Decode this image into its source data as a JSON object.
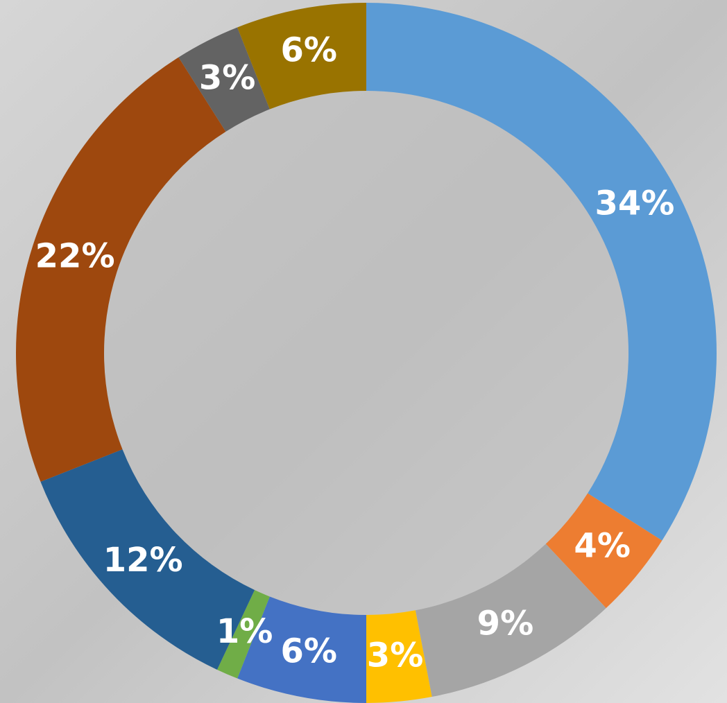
{
  "chart_data": {
    "type": "donut",
    "values": [
      34,
      4,
      9,
      3,
      6,
      1,
      12,
      22,
      3,
      6
    ],
    "value_labels": [
      "34%",
      "4%",
      "9%",
      "3%",
      "6%",
      "1%",
      "12%",
      "22%",
      "3%",
      "6%"
    ],
    "colors": [
      "#5b9bd5",
      "#ed7d31",
      "#a5a5a5",
      "#ffc000",
      "#4472c4",
      "#70ad47",
      "#255e91",
      "#9e480e",
      "#636363",
      "#997300"
    ]
  }
}
